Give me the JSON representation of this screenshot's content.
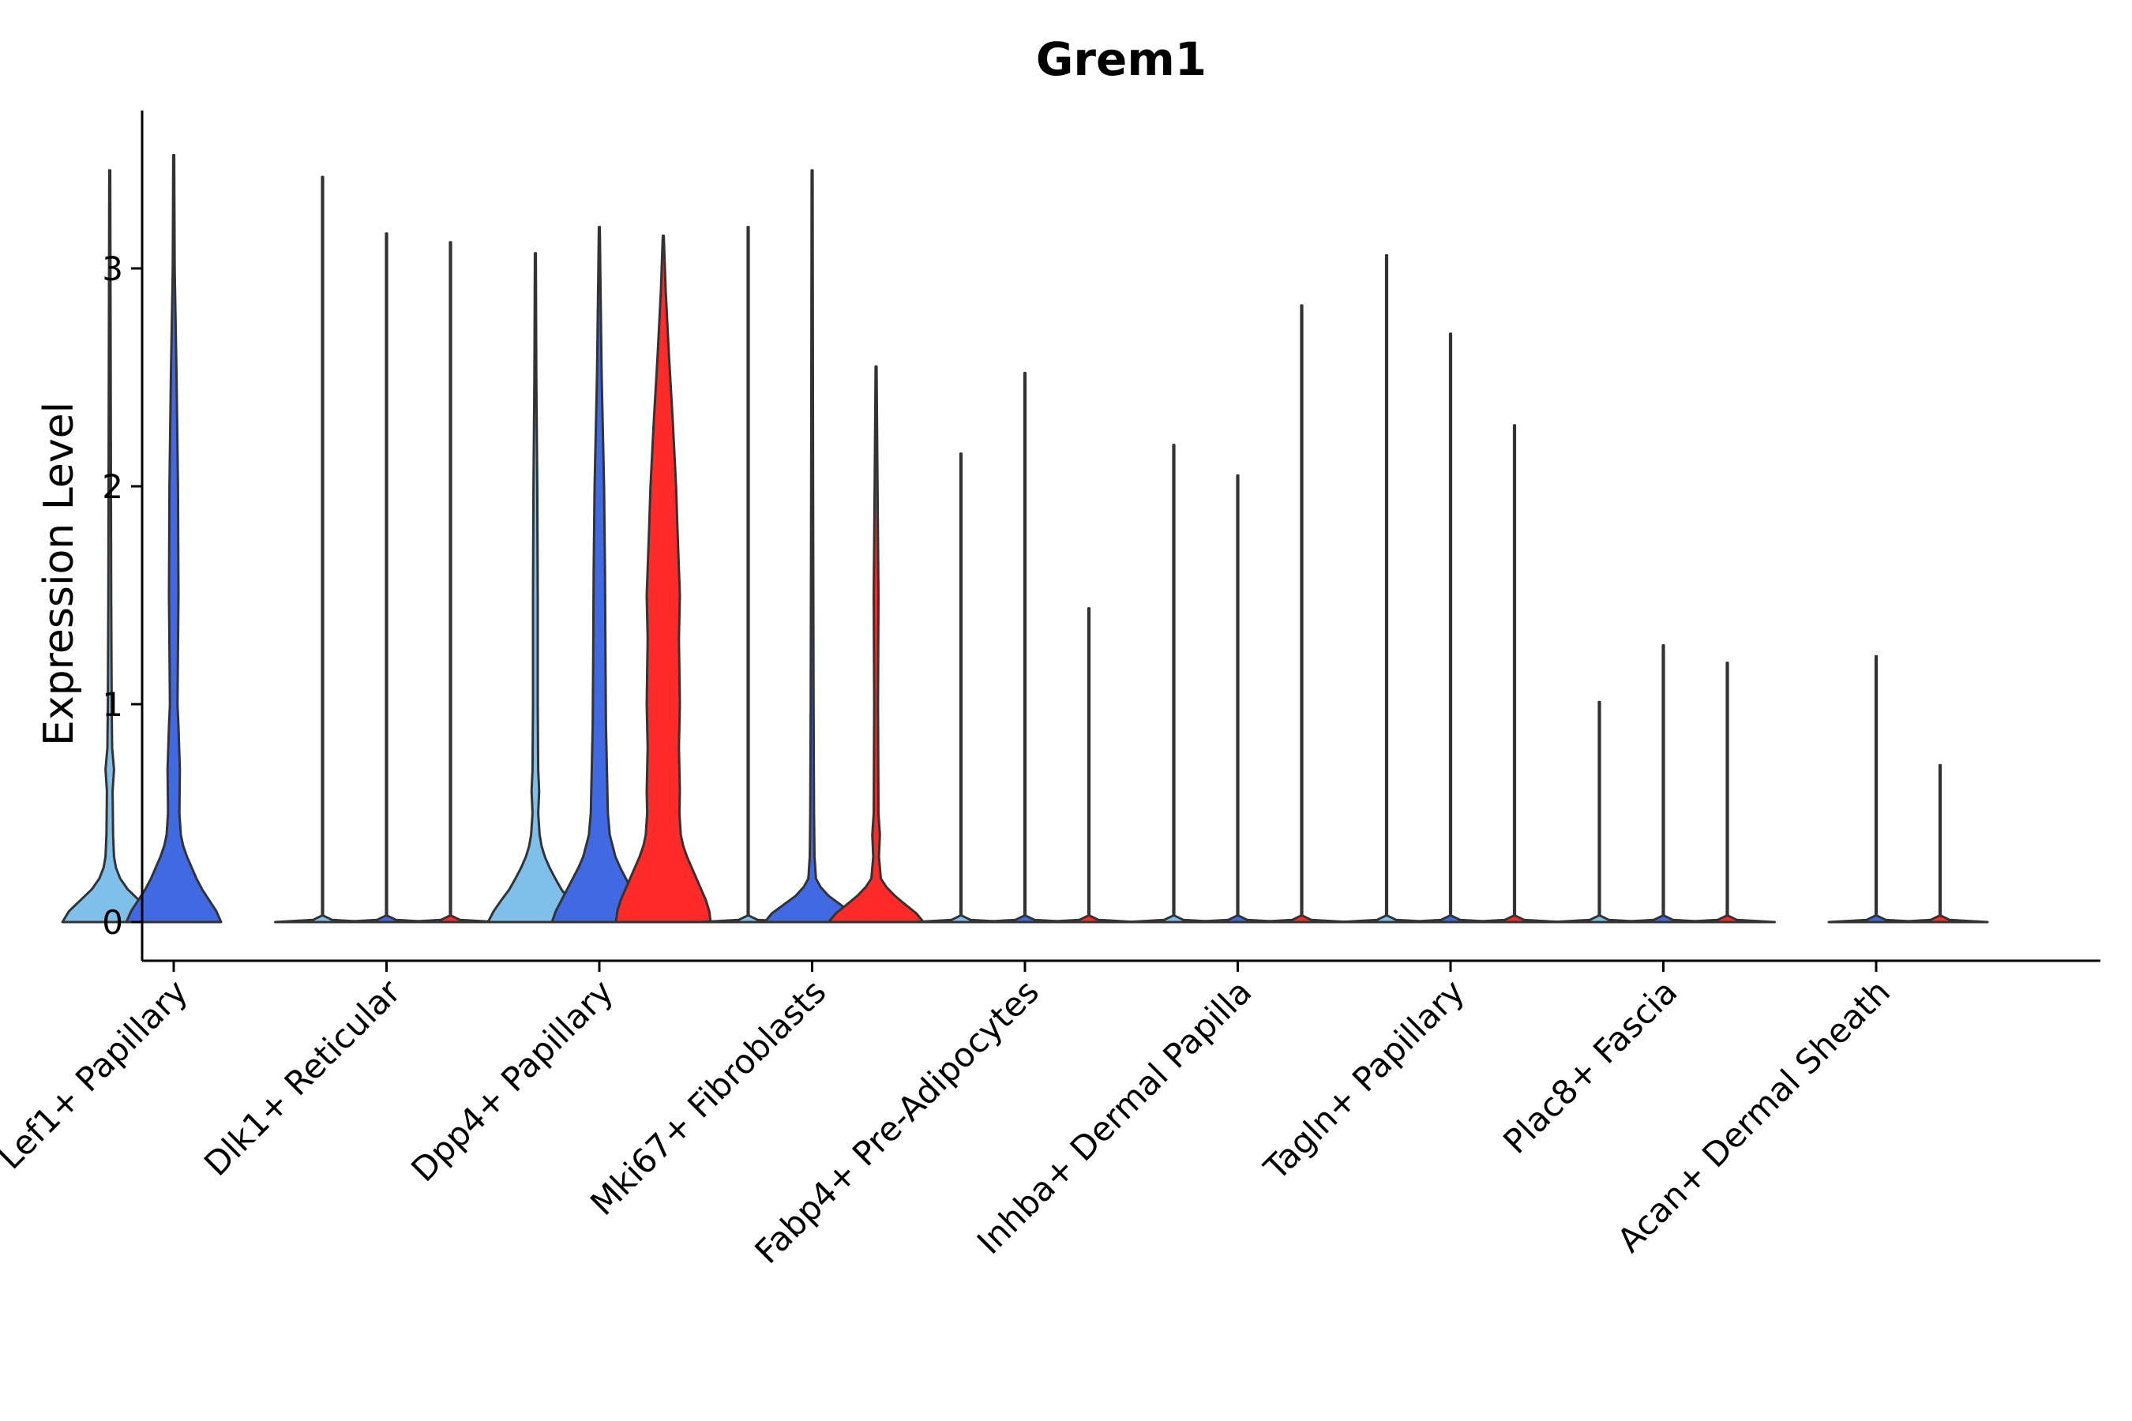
{
  "chart_data": {
    "type": "violin",
    "title": "Grem1",
    "ylabel": "Expression Level",
    "xlabel": "",
    "ylim": [
      -0.18,
      3.7
    ],
    "yticks": [
      0,
      1,
      2,
      3
    ],
    "categories": [
      "Lef1+ Papillary",
      "Dlk1+ Reticular",
      "Dpp4+ Papillary",
      "Mki67+ Fibroblasts",
      "Fabp4+ Pre-Adipocytes",
      "Inhba+ Dermal Papilla",
      "Tagln+ Papillary",
      "Plac8+ Fascia",
      "Acan+ Dermal Sheath"
    ],
    "series": [
      {
        "color": "#80BFEA"
      },
      {
        "color": "#4169E1"
      },
      {
        "color": "#FF2A2A"
      }
    ],
    "violins": [
      {
        "category": 0,
        "series": 0,
        "max": 3.45,
        "profile": [
          [
            0,
            1.0
          ],
          [
            0.05,
            0.86
          ],
          [
            0.1,
            0.62
          ],
          [
            0.15,
            0.38
          ],
          [
            0.2,
            0.22
          ],
          [
            0.25,
            0.13
          ],
          [
            0.3,
            0.09
          ],
          [
            0.4,
            0.07
          ],
          [
            0.6,
            0.06
          ],
          [
            0.7,
            0.09
          ],
          [
            0.8,
            0.05
          ],
          [
            1.0,
            0.04
          ],
          [
            1.5,
            0.03
          ],
          [
            2.5,
            0.02
          ],
          [
            3.45,
            0.01
          ]
        ]
      },
      {
        "category": 0,
        "series": 1,
        "max": 3.52,
        "profile": [
          [
            0,
            1.0
          ],
          [
            0.05,
            0.9
          ],
          [
            0.1,
            0.75
          ],
          [
            0.15,
            0.6
          ],
          [
            0.2,
            0.48
          ],
          [
            0.25,
            0.38
          ],
          [
            0.3,
            0.28
          ],
          [
            0.35,
            0.2
          ],
          [
            0.4,
            0.15
          ],
          [
            0.5,
            0.12
          ],
          [
            0.7,
            0.13
          ],
          [
            0.9,
            0.1
          ],
          [
            1.0,
            0.08
          ],
          [
            1.5,
            0.1
          ],
          [
            2.0,
            0.09
          ],
          [
            2.5,
            0.06
          ],
          [
            3.0,
            0.02
          ],
          [
            3.52,
            0.01
          ]
        ]
      },
      {
        "category": 1,
        "series": 0,
        "max": 3.42,
        "profile": [
          [
            0,
            1.0
          ],
          [
            0.01,
            0.2
          ],
          [
            0.03,
            0.01
          ],
          [
            3.42,
            0.01
          ]
        ]
      },
      {
        "category": 1,
        "series": 1,
        "max": 3.16,
        "profile": [
          [
            0,
            1.0
          ],
          [
            0.01,
            0.2
          ],
          [
            0.03,
            0.01
          ],
          [
            3.16,
            0.01
          ]
        ]
      },
      {
        "category": 1,
        "series": 2,
        "max": 3.12,
        "profile": [
          [
            0,
            1.0
          ],
          [
            0.01,
            0.2
          ],
          [
            0.03,
            0.01
          ],
          [
            3.12,
            0.01
          ]
        ]
      },
      {
        "category": 2,
        "series": 0,
        "max": 3.07,
        "profile": [
          [
            0,
            1.0
          ],
          [
            0.05,
            0.88
          ],
          [
            0.1,
            0.72
          ],
          [
            0.15,
            0.55
          ],
          [
            0.2,
            0.42
          ],
          [
            0.25,
            0.3
          ],
          [
            0.3,
            0.2
          ],
          [
            0.35,
            0.13
          ],
          [
            0.4,
            0.09
          ],
          [
            0.5,
            0.06
          ],
          [
            0.6,
            0.08
          ],
          [
            0.7,
            0.06
          ],
          [
            1.0,
            0.05
          ],
          [
            1.5,
            0.05
          ],
          [
            2.0,
            0.04
          ],
          [
            2.5,
            0.02
          ],
          [
            3.07,
            0.01
          ]
        ]
      },
      {
        "category": 2,
        "series": 1,
        "max": 3.19,
        "profile": [
          [
            0,
            1.0
          ],
          [
            0.05,
            0.92
          ],
          [
            0.1,
            0.8
          ],
          [
            0.15,
            0.68
          ],
          [
            0.2,
            0.56
          ],
          [
            0.25,
            0.44
          ],
          [
            0.3,
            0.34
          ],
          [
            0.4,
            0.22
          ],
          [
            0.5,
            0.18
          ],
          [
            0.7,
            0.16
          ],
          [
            0.9,
            0.14
          ],
          [
            1.2,
            0.13
          ],
          [
            1.6,
            0.12
          ],
          [
            2.0,
            0.1
          ],
          [
            2.5,
            0.05
          ],
          [
            3.0,
            0.02
          ],
          [
            3.19,
            0.01
          ]
        ]
      },
      {
        "category": 2,
        "series": 2,
        "max": 3.15,
        "profile": [
          [
            0,
            1.0
          ],
          [
            0.05,
            0.97
          ],
          [
            0.1,
            0.9
          ],
          [
            0.15,
            0.8
          ],
          [
            0.2,
            0.7
          ],
          [
            0.25,
            0.6
          ],
          [
            0.3,
            0.5
          ],
          [
            0.35,
            0.42
          ],
          [
            0.4,
            0.37
          ],
          [
            0.5,
            0.34
          ],
          [
            0.6,
            0.35
          ],
          [
            0.8,
            0.33
          ],
          [
            1.0,
            0.35
          ],
          [
            1.3,
            0.33
          ],
          [
            1.5,
            0.35
          ],
          [
            1.8,
            0.3
          ],
          [
            2.0,
            0.27
          ],
          [
            2.3,
            0.2
          ],
          [
            2.6,
            0.12
          ],
          [
            2.9,
            0.05
          ],
          [
            3.15,
            0.01
          ]
        ]
      },
      {
        "category": 3,
        "series": 0,
        "max": 3.19,
        "profile": [
          [
            0,
            1.0
          ],
          [
            0.01,
            0.2
          ],
          [
            0.03,
            0.01
          ],
          [
            3.19,
            0.01
          ]
        ]
      },
      {
        "category": 3,
        "series": 1,
        "max": 3.45,
        "profile": [
          [
            0,
            1.0
          ],
          [
            0.04,
            0.85
          ],
          [
            0.08,
            0.6
          ],
          [
            0.12,
            0.35
          ],
          [
            0.16,
            0.18
          ],
          [
            0.2,
            0.08
          ],
          [
            0.3,
            0.05
          ],
          [
            0.5,
            0.04
          ],
          [
            1.0,
            0.03
          ],
          [
            2.0,
            0.02
          ],
          [
            3.45,
            0.01
          ]
        ]
      },
      {
        "category": 3,
        "series": 2,
        "max": 2.55,
        "profile": [
          [
            0,
            1.0
          ],
          [
            0.04,
            0.85
          ],
          [
            0.08,
            0.62
          ],
          [
            0.12,
            0.4
          ],
          [
            0.16,
            0.22
          ],
          [
            0.2,
            0.1
          ],
          [
            0.3,
            0.06
          ],
          [
            0.4,
            0.08
          ],
          [
            0.5,
            0.05
          ],
          [
            1.0,
            0.04
          ],
          [
            1.5,
            0.05
          ],
          [
            2.0,
            0.03
          ],
          [
            2.55,
            0.01
          ]
        ]
      },
      {
        "category": 4,
        "series": 0,
        "max": 2.15,
        "profile": [
          [
            0,
            1.0
          ],
          [
            0.01,
            0.2
          ],
          [
            0.03,
            0.01
          ],
          [
            2.15,
            0.01
          ]
        ]
      },
      {
        "category": 4,
        "series": 1,
        "max": 2.52,
        "profile": [
          [
            0,
            1.0
          ],
          [
            0.01,
            0.2
          ],
          [
            0.03,
            0.01
          ],
          [
            2.52,
            0.01
          ]
        ]
      },
      {
        "category": 4,
        "series": 2,
        "max": 1.44,
        "profile": [
          [
            0,
            1.0
          ],
          [
            0.01,
            0.2
          ],
          [
            0.03,
            0.01
          ],
          [
            1.44,
            0.01
          ]
        ]
      },
      {
        "category": 5,
        "series": 0,
        "max": 2.19,
        "profile": [
          [
            0,
            1.0
          ],
          [
            0.01,
            0.2
          ],
          [
            0.03,
            0.01
          ],
          [
            2.19,
            0.01
          ]
        ]
      },
      {
        "category": 5,
        "series": 1,
        "max": 2.05,
        "profile": [
          [
            0,
            1.0
          ],
          [
            0.01,
            0.2
          ],
          [
            0.03,
            0.01
          ],
          [
            2.05,
            0.01
          ]
        ]
      },
      {
        "category": 5,
        "series": 2,
        "max": 2.83,
        "profile": [
          [
            0,
            1.0
          ],
          [
            0.01,
            0.2
          ],
          [
            0.03,
            0.01
          ],
          [
            2.83,
            0.01
          ]
        ]
      },
      {
        "category": 6,
        "series": 0,
        "max": 3.06,
        "profile": [
          [
            0,
            1.0
          ],
          [
            0.01,
            0.2
          ],
          [
            0.03,
            0.01
          ],
          [
            3.06,
            0.01
          ]
        ]
      },
      {
        "category": 6,
        "series": 1,
        "max": 2.7,
        "profile": [
          [
            0,
            1.0
          ],
          [
            0.01,
            0.2
          ],
          [
            0.03,
            0.01
          ],
          [
            2.7,
            0.01
          ]
        ]
      },
      {
        "category": 6,
        "series": 2,
        "max": 2.28,
        "profile": [
          [
            0,
            1.0
          ],
          [
            0.01,
            0.2
          ],
          [
            0.03,
            0.01
          ],
          [
            2.28,
            0.01
          ]
        ]
      },
      {
        "category": 7,
        "series": 0,
        "max": 1.01,
        "profile": [
          [
            0,
            1.0
          ],
          [
            0.01,
            0.2
          ],
          [
            0.03,
            0.01
          ],
          [
            1.01,
            0.01
          ]
        ]
      },
      {
        "category": 7,
        "series": 1,
        "max": 1.27,
        "profile": [
          [
            0,
            1.0
          ],
          [
            0.01,
            0.2
          ],
          [
            0.03,
            0.01
          ],
          [
            1.27,
            0.01
          ]
        ]
      },
      {
        "category": 7,
        "series": 2,
        "max": 1.19,
        "profile": [
          [
            0,
            1.0
          ],
          [
            0.01,
            0.2
          ],
          [
            0.03,
            0.01
          ],
          [
            1.19,
            0.01
          ]
        ]
      },
      {
        "category": 8,
        "series": 1,
        "max": 1.22,
        "profile": [
          [
            0,
            1.0
          ],
          [
            0.01,
            0.2
          ],
          [
            0.03,
            0.01
          ],
          [
            1.22,
            0.01
          ]
        ]
      },
      {
        "category": 8,
        "series": 2,
        "max": 0.72,
        "profile": [
          [
            0,
            1.0
          ],
          [
            0.01,
            0.2
          ],
          [
            0.03,
            0.01
          ],
          [
            0.72,
            0.01
          ]
        ]
      }
    ]
  }
}
